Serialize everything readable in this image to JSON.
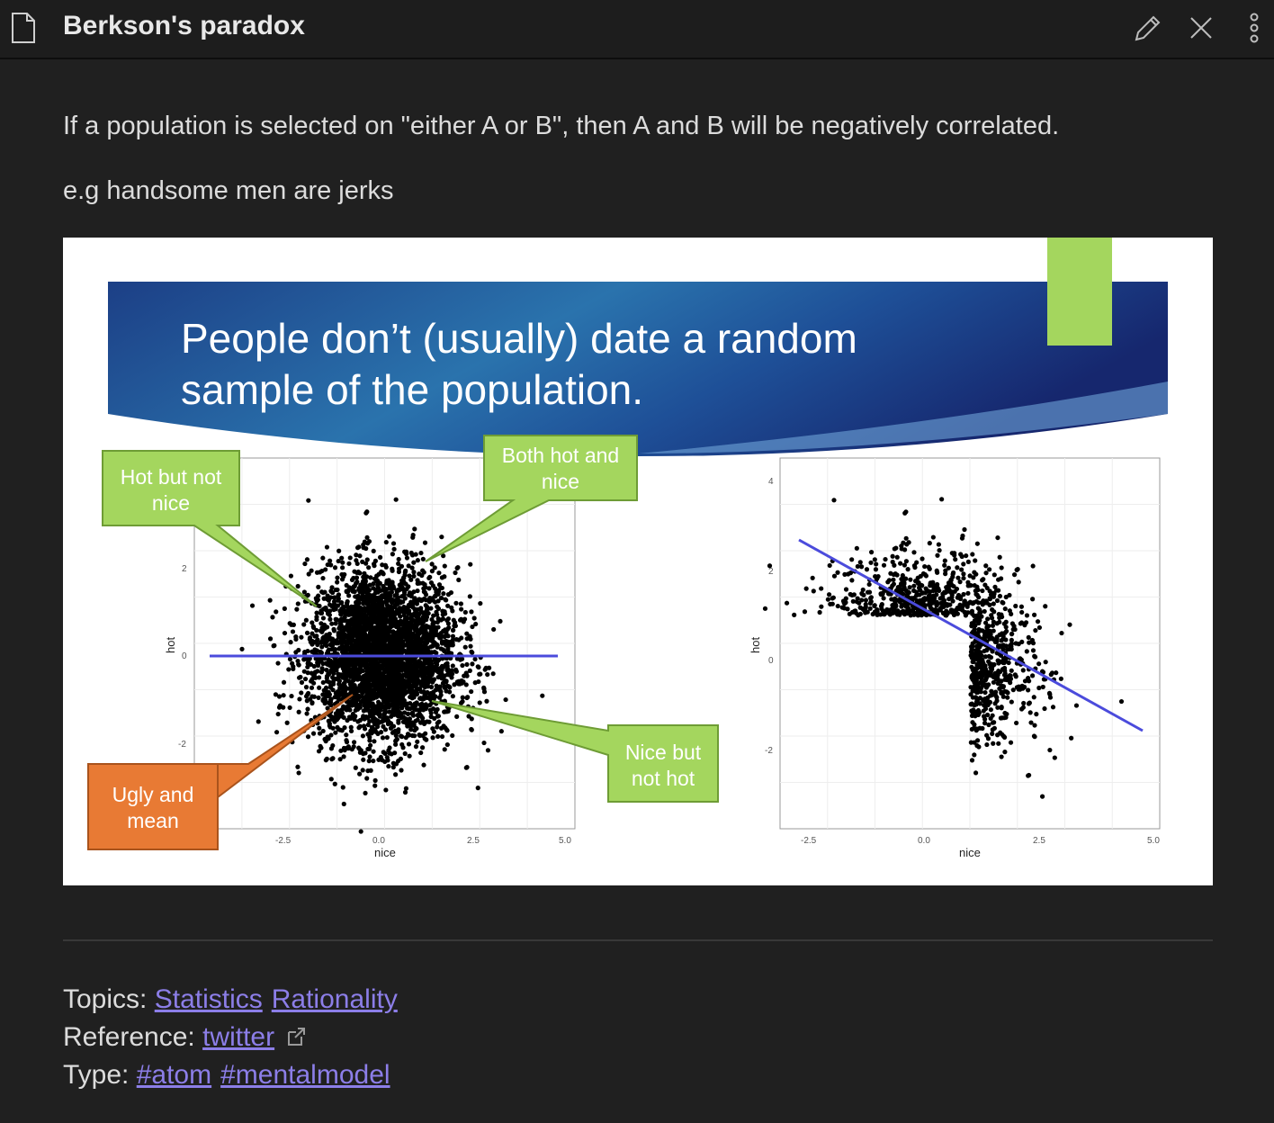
{
  "header": {
    "title": "Berkson's paradox",
    "icons": [
      "document-icon",
      "pencil-icon",
      "close-icon",
      "more-vertical-icon"
    ]
  },
  "content": {
    "paragraph1": "If a population is selected on \"either A or B\", then A and B will be negatively correlated.",
    "paragraph2": "e.g handsome men are jerks"
  },
  "figure": {
    "slide_title_line1": "People don’t (usually) date a random",
    "slide_title_line2": "sample of the population.",
    "callouts": {
      "hot_not_nice": [
        "Hot but not",
        "nice"
      ],
      "both": [
        "Both hot and",
        "nice"
      ],
      "nice_not_hot": [
        "Nice but",
        "not hot"
      ],
      "ugly_mean": [
        "Ugly and",
        "mean"
      ]
    },
    "colors": {
      "banner": "#1f4f8f",
      "callout_green": "#a4d65e",
      "callout_orange": "#e87a34",
      "regression_line": "#4b4bdc"
    },
    "chart_data": [
      {
        "type": "scatter",
        "xlabel": "nice",
        "ylabel": "hot",
        "x_ticks": [
          "-2.5",
          "0.0",
          "2.5",
          "5.0"
        ],
        "y_ticks": [
          "2",
          "0",
          "-2"
        ],
        "regression": {
          "slope": 0.0,
          "intercept": 0.0,
          "x_range": [
            -3.7,
            4.8
          ]
        },
        "distribution": "bivariate normal cloud centered at (0,0), sd ~1"
      },
      {
        "type": "scatter",
        "xlabel": "nice",
        "ylabel": "hot",
        "x_ticks": [
          "-2.5",
          "0.0",
          "2.5",
          "5.0"
        ],
        "y_ticks": [
          "4",
          "2",
          "0",
          "-2"
        ],
        "regression": {
          "x_start": -2.6,
          "y_start": 2.7,
          "x_end": 4.8,
          "y_end": -1.55
        },
        "distribution": "selected points where hot > 1 or nice > 1"
      }
    ]
  },
  "footer": {
    "topics_label": "Topics:",
    "topics": [
      "Statistics",
      "Rationality"
    ],
    "reference_label": "Reference:",
    "reference_link": "twitter",
    "type_label": "Type:",
    "types": [
      "#atom",
      "#mentalmodel"
    ]
  }
}
